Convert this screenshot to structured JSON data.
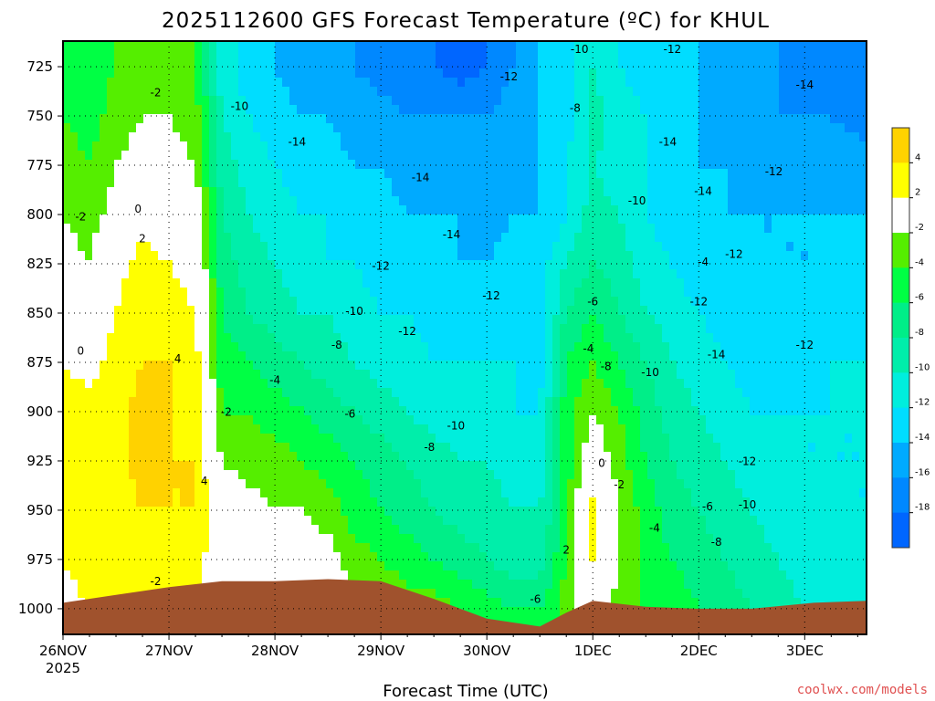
{
  "chart_data": {
    "type": "heatmap",
    "title": "2025112600 GFS Forecast Temperature (ºC) for KHUL",
    "xlabel": "Forecast Time (UTC)",
    "ylabel": "",
    "credit": "coolwx.com/models",
    "x_tick_labels": [
      "26NOV",
      "27NOV",
      "28NOV",
      "29NOV",
      "30NOV",
      "1DEC",
      "2DEC",
      "3DEC"
    ],
    "x_year_label": "2025",
    "x_hours_range": [
      0,
      182
    ],
    "y_tick_labels": [
      "725",
      "750",
      "775",
      "800",
      "825",
      "850",
      "875",
      "900",
      "925",
      "950",
      "975",
      "1000"
    ],
    "y_range_hpa": [
      712,
      1013
    ],
    "colorbar": {
      "tick_labels": [
        "4",
        "2",
        "-2",
        "-4",
        "-6",
        "-8",
        "-10",
        "-12",
        "-14",
        "-16",
        "-18"
      ],
      "bins": [
        {
          "lo": 4,
          "hi": 6,
          "color": "#ffd200"
        },
        {
          "lo": 2,
          "hi": 4,
          "color": "#ffff00"
        },
        {
          "lo": -2,
          "hi": 2,
          "color": "#ffffff"
        },
        {
          "lo": -4,
          "hi": -2,
          "color": "#55ee00"
        },
        {
          "lo": -6,
          "hi": -4,
          "color": "#00ff44"
        },
        {
          "lo": -8,
          "hi": -6,
          "color": "#00ee88"
        },
        {
          "lo": -10,
          "hi": -8,
          "color": "#00eeaa"
        },
        {
          "lo": -12,
          "hi": -10,
          "color": "#00eedd"
        },
        {
          "lo": -14,
          "hi": -12,
          "color": "#00ddff"
        },
        {
          "lo": -16,
          "hi": -14,
          "color": "#00aaff"
        },
        {
          "lo": -18,
          "hi": -16,
          "color": "#0088ff"
        },
        {
          "lo": -20,
          "hi": -18,
          "color": "#0066ff"
        }
      ]
    },
    "ground_color": "#a0522d",
    "surface_pressure": [
      {
        "h": 0,
        "p": 997
      },
      {
        "h": 12,
        "p": 993
      },
      {
        "h": 24,
        "p": 989
      },
      {
        "h": 36,
        "p": 986
      },
      {
        "h": 48,
        "p": 986
      },
      {
        "h": 60,
        "p": 985
      },
      {
        "h": 72,
        "p": 986
      },
      {
        "h": 84,
        "p": 995
      },
      {
        "h": 96,
        "p": 1005
      },
      {
        "h": 108,
        "p": 1009
      },
      {
        "h": 114,
        "p": 1002
      },
      {
        "h": 120,
        "p": 996
      },
      {
        "h": 132,
        "p": 999
      },
      {
        "h": 144,
        "p": 1000
      },
      {
        "h": 156,
        "p": 1000
      },
      {
        "h": 170,
        "p": 997
      },
      {
        "h": 182,
        "p": 996
      }
    ],
    "temperature_grid": {
      "hours": [
        0,
        6,
        12,
        18,
        24,
        30,
        36,
        42,
        48,
        54,
        60,
        66,
        72,
        78,
        84,
        90,
        96,
        102,
        108,
        114,
        120,
        126,
        132,
        138,
        144,
        150,
        156,
        162,
        168,
        174,
        182
      ],
      "levels_hpa": [
        1000,
        975,
        950,
        925,
        900,
        875,
        850,
        825,
        800,
        775,
        750,
        725
      ],
      "values": [
        [
          1,
          2,
          2,
          3,
          2,
          3,
          0,
          -1,
          -1,
          -1,
          0,
          -2,
          -2,
          -3,
          -3,
          -4,
          -5,
          -6,
          -6,
          -3,
          0,
          -3,
          -4,
          -5,
          -6,
          -7,
          -8,
          -9,
          -10,
          -10,
          -11
        ],
        [
          2,
          3,
          3,
          4,
          3,
          3,
          0,
          0,
          -1,
          -1,
          -1,
          -3,
          -4,
          -5,
          -6,
          -7,
          -8,
          -9,
          -9,
          -4,
          2,
          -2,
          -5,
          -6,
          -7,
          -8,
          -9,
          -10,
          -11,
          -11,
          -11
        ],
        [
          3,
          4,
          3,
          4,
          4,
          4,
          0,
          -1,
          -2,
          -2,
          -3,
          -5,
          -6,
          -7,
          -8,
          -9,
          -9,
          -10,
          -10,
          -5,
          3,
          -2,
          -5,
          -7,
          -8,
          -9,
          -10,
          -11,
          -11,
          -12,
          -12
        ],
        [
          3,
          4,
          3,
          5,
          4,
          4,
          -2,
          -3,
          -3,
          -4,
          -5,
          -6,
          -7,
          -8,
          -9,
          -10,
          -10,
          -11,
          -11,
          -5,
          0,
          -3,
          -6,
          -8,
          -9,
          -10,
          -11,
          -12,
          -12,
          -12,
          -12
        ],
        [
          3,
          3,
          3,
          5,
          4,
          3,
          -4,
          -4,
          -5,
          -6,
          -7,
          -8,
          -9,
          -10,
          -11,
          -11,
          -11,
          -12,
          -12,
          -5,
          -2,
          -4,
          -7,
          -9,
          -10,
          -11,
          -12,
          -12,
          -12,
          -12,
          -12
        ],
        [
          2,
          1,
          3,
          4,
          4,
          3,
          -5,
          -6,
          -7,
          -8,
          -9,
          -10,
          -11,
          -11,
          -12,
          -12,
          -12,
          -12,
          -13,
          -6,
          -4,
          -6,
          -8,
          -10,
          -11,
          -12,
          -13,
          -13,
          -13,
          -12,
          -12
        ],
        [
          0,
          0,
          2,
          4,
          3,
          2,
          -6,
          -8,
          -9,
          -10,
          -10,
          -11,
          -12,
          -12,
          -13,
          -13,
          -13,
          -13,
          -13,
          -8,
          -6,
          -8,
          -10,
          -11,
          -12,
          -13,
          -13,
          -14,
          -13,
          -13,
          -13
        ],
        [
          -1,
          -2,
          1,
          3,
          2,
          1,
          -7,
          -9,
          -10,
          -11,
          -12,
          -12,
          -13,
          -13,
          -13,
          -14,
          -14,
          -13,
          -13,
          -10,
          -8,
          -9,
          -11,
          -12,
          -13,
          -13,
          -14,
          -14,
          -14,
          -13,
          -13
        ],
        [
          -2,
          -3,
          -1,
          1,
          0,
          0,
          -8,
          -10,
          -11,
          -12,
          -12,
          -13,
          -13,
          -14,
          -14,
          -14,
          -15,
          -14,
          -14,
          -12,
          -9,
          -10,
          -12,
          -13,
          -13,
          -14,
          -14,
          -14,
          -14,
          -14,
          -14
        ],
        [
          -3,
          -4,
          -2,
          -1,
          -1,
          -2,
          -9,
          -11,
          -12,
          -13,
          -13,
          -14,
          -14,
          -15,
          -15,
          -15,
          -16,
          -15,
          -14,
          -12,
          -10,
          -11,
          -12,
          -13,
          -14,
          -14,
          -15,
          -15,
          -15,
          -15,
          -15
        ],
        [
          -4,
          -5,
          -3,
          -2,
          -2,
          -3,
          -10,
          -12,
          -13,
          -14,
          -14,
          -15,
          -15,
          -16,
          -16,
          -16,
          -16,
          -15,
          -14,
          -13,
          -9,
          -11,
          -12,
          -13,
          -14,
          -15,
          -15,
          -16,
          -16,
          -16,
          -17
        ],
        [
          -5,
          -5,
          -4,
          -3,
          -3,
          -4,
          -11,
          -13,
          -14,
          -15,
          -15,
          -16,
          -17,
          -18,
          -18,
          -19,
          -18,
          -16,
          -14,
          -13,
          -10,
          -12,
          -13,
          -13,
          -14,
          -15,
          -16,
          -16,
          -17,
          -17,
          -18
        ]
      ]
    },
    "contour_labels": [
      {
        "h": 21,
        "p": 740,
        "text": "-2"
      },
      {
        "h": 40,
        "p": 747,
        "text": "-10"
      },
      {
        "h": 53,
        "p": 765,
        "text": "-14"
      },
      {
        "h": 81,
        "p": 783,
        "text": "-14"
      },
      {
        "h": 101,
        "p": 732,
        "text": "-12"
      },
      {
        "h": 117,
        "p": 718,
        "text": "-10"
      },
      {
        "h": 138,
        "p": 718,
        "text": "-12"
      },
      {
        "h": 168,
        "p": 736,
        "text": "-14"
      },
      {
        "h": 137,
        "p": 765,
        "text": "-14"
      },
      {
        "h": 161,
        "p": 780,
        "text": "-12"
      },
      {
        "h": 116,
        "p": 748,
        "text": "-8"
      },
      {
        "h": 130,
        "p": 795,
        "text": "-10"
      },
      {
        "h": 145,
        "p": 790,
        "text": "-14"
      },
      {
        "h": 145,
        "p": 826,
        "text": "-4"
      },
      {
        "h": 152,
        "p": 822,
        "text": "-12"
      },
      {
        "h": 88,
        "p": 812,
        "text": "-14"
      },
      {
        "h": 72,
        "p": 828,
        "text": "-12"
      },
      {
        "h": 97,
        "p": 843,
        "text": "-12"
      },
      {
        "h": 66,
        "p": 851,
        "text": "-10"
      },
      {
        "h": 78,
        "p": 861,
        "text": "-12"
      },
      {
        "h": 62,
        "p": 868,
        "text": "-8"
      },
      {
        "h": 120,
        "p": 846,
        "text": "-6"
      },
      {
        "h": 144,
        "p": 846,
        "text": "-12"
      },
      {
        "h": 119,
        "p": 870,
        "text": "-4"
      },
      {
        "h": 123,
        "p": 879,
        "text": "-8"
      },
      {
        "h": 133,
        "p": 882,
        "text": "-10"
      },
      {
        "h": 148,
        "p": 873,
        "text": "-14"
      },
      {
        "h": 168,
        "p": 868,
        "text": "-12"
      },
      {
        "h": 4,
        "p": 803,
        "text": "-2"
      },
      {
        "h": 17,
        "p": 799,
        "text": "0"
      },
      {
        "h": 18,
        "p": 814,
        "text": "2"
      },
      {
        "h": 4,
        "p": 871,
        "text": "0"
      },
      {
        "h": 26,
        "p": 875,
        "text": "4"
      },
      {
        "h": 37,
        "p": 902,
        "text": "-2"
      },
      {
        "h": 48,
        "p": 886,
        "text": "-4"
      },
      {
        "h": 65,
        "p": 903,
        "text": "-6"
      },
      {
        "h": 89,
        "p": 909,
        "text": "-10"
      },
      {
        "h": 83,
        "p": 920,
        "text": "-8"
      },
      {
        "h": 32,
        "p": 937,
        "text": "4"
      },
      {
        "h": 21,
        "p": 988,
        "text": "-2"
      },
      {
        "h": 107,
        "p": 997,
        "text": "-6"
      },
      {
        "h": 114,
        "p": 972,
        "text": "2"
      },
      {
        "h": 122,
        "p": 928,
        "text": "0"
      },
      {
        "h": 126,
        "p": 939,
        "text": "-2"
      },
      {
        "h": 134,
        "p": 961,
        "text": "-4"
      },
      {
        "h": 146,
        "p": 950,
        "text": "-6"
      },
      {
        "h": 148,
        "p": 968,
        "text": "-8"
      },
      {
        "h": 155,
        "p": 949,
        "text": "-10"
      },
      {
        "h": 155,
        "p": 927,
        "text": "-12"
      }
    ]
  }
}
